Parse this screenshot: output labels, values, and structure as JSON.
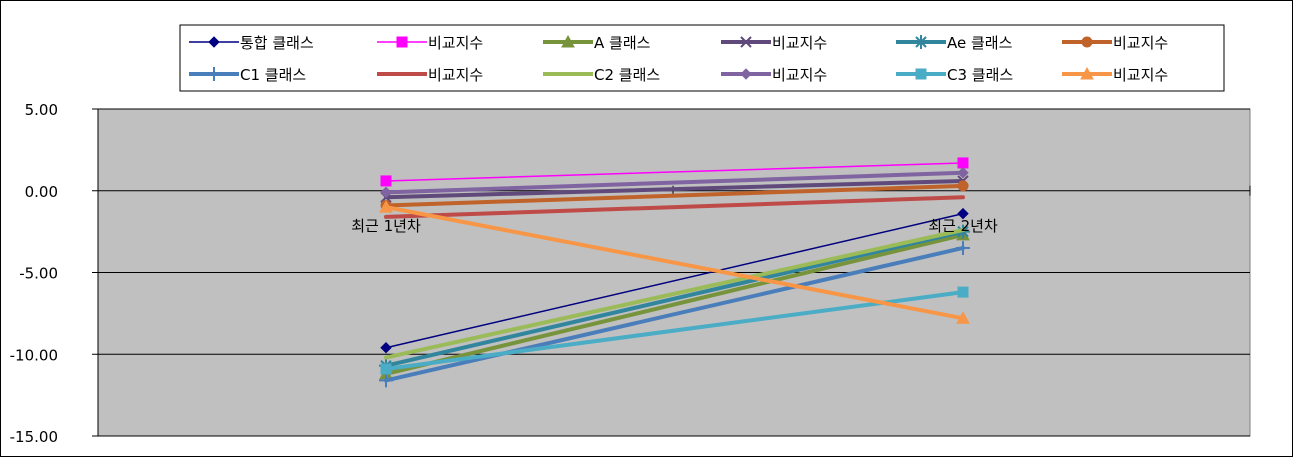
{
  "chart_data": {
    "type": "line",
    "categories": [
      "최근 1년차",
      "최근 2년차"
    ],
    "ylim": [
      -15,
      5
    ],
    "yticks": [
      "5.00",
      "0.00",
      "-5.00",
      "-10.00",
      "-15.00"
    ],
    "ytick_values": [
      5,
      0,
      -5,
      -10,
      -15
    ],
    "grid": true,
    "plot_background": "#c0c0c0",
    "legend_position": "top",
    "series": [
      {
        "name": "통합 클래스",
        "values": [
          -9.6,
          -1.4
        ],
        "color": "#000080",
        "marker": "diamond",
        "width": 1.5
      },
      {
        "name": "비교지수",
        "values": [
          0.6,
          1.7
        ],
        "color": "#ff00ff",
        "marker": "square",
        "width": 1.5
      },
      {
        "name": "A 클래스",
        "values": [
          -11.2,
          -2.7
        ],
        "color": "#77933c",
        "marker": "triangle",
        "width": 4
      },
      {
        "name": "비교지수",
        "values": [
          -0.4,
          0.6
        ],
        "color": "#604a7b",
        "marker": "x",
        "width": 4
      },
      {
        "name": "Ae 클래스",
        "values": [
          -10.7,
          -2.5
        ],
        "color": "#31859c",
        "marker": "star",
        "width": 4
      },
      {
        "name": "비교지수",
        "values": [
          -0.9,
          0.3
        ],
        "color": "#c0632a",
        "marker": "circle",
        "width": 4
      },
      {
        "name": "C1 클래스",
        "values": [
          -11.6,
          -3.5
        ],
        "color": "#4a7ebb",
        "marker": "plus",
        "width": 4
      },
      {
        "name": "비교지수",
        "values": [
          -1.6,
          -0.4
        ],
        "color": "#be4b48",
        "marker": "none",
        "width": 4
      },
      {
        "name": "C2 클래스",
        "values": [
          -10.2,
          -2.4
        ],
        "color": "#9bbb59",
        "marker": "none",
        "width": 4
      },
      {
        "name": "비교지수",
        "values": [
          -0.1,
          1.1
        ],
        "color": "#8064a2",
        "marker": "diamond",
        "width": 4
      },
      {
        "name": "C3 클래스",
        "values": [
          -10.9,
          -6.2
        ],
        "color": "#4bacc6",
        "marker": "square",
        "width": 4
      },
      {
        "name": "비교지수",
        "values": [
          -1.0,
          -7.8
        ],
        "color": "#f79646",
        "marker": "triangle",
        "width": 4
      }
    ]
  }
}
